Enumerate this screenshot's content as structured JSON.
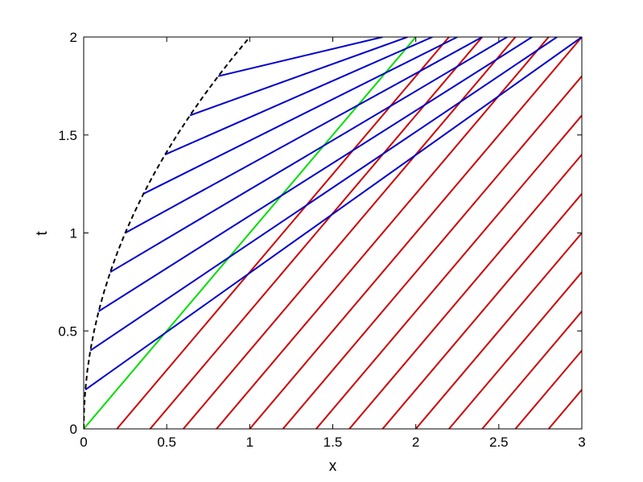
{
  "chart_data": {
    "type": "line",
    "title": "",
    "xlabel": "x",
    "ylabel": "t",
    "xlim": [
      0,
      3
    ],
    "ylim": [
      0,
      2
    ],
    "xticks": [
      0,
      0.5,
      1,
      1.5,
      2,
      2.5,
      3
    ],
    "yticks": [
      0,
      0.5,
      1,
      1.5,
      2
    ],
    "xtick_labels": [
      "0",
      "0.5",
      "1",
      "1.5",
      "2",
      "2.5",
      "3"
    ],
    "ytick_labels": [
      "0",
      "0.5",
      "1",
      "1.5",
      "2"
    ],
    "grid": false,
    "colors": {
      "red": "#cc0000",
      "blue": "#0000cc",
      "green": "#00dd00",
      "black": "#000000"
    },
    "series": [
      {
        "color": "red",
        "style": "solid",
        "lines": [
          [
            [
              0.2,
              0
            ],
            [
              2.2,
              2
            ]
          ],
          [
            [
              0.4,
              0
            ],
            [
              2.4,
              2
            ]
          ],
          [
            [
              0.6,
              0
            ],
            [
              2.6,
              2
            ]
          ],
          [
            [
              0.8,
              0
            ],
            [
              2.8,
              2
            ]
          ],
          [
            [
              1.0,
              0
            ],
            [
              3.0,
              2
            ]
          ],
          [
            [
              1.2,
              0
            ],
            [
              3.0,
              1.8
            ]
          ],
          [
            [
              1.4,
              0
            ],
            [
              3.0,
              1.6
            ]
          ],
          [
            [
              1.6,
              0
            ],
            [
              3.0,
              1.4
            ]
          ],
          [
            [
              1.8,
              0
            ],
            [
              3.0,
              1.2
            ]
          ],
          [
            [
              2.0,
              0
            ],
            [
              3.0,
              1.0
            ]
          ],
          [
            [
              2.2,
              0
            ],
            [
              3.0,
              0.8
            ]
          ],
          [
            [
              2.4,
              0
            ],
            [
              3.0,
              0.6
            ]
          ],
          [
            [
              2.6,
              0
            ],
            [
              3.0,
              0.4
            ]
          ],
          [
            [
              2.8,
              0
            ],
            [
              3.0,
              0.2
            ]
          ]
        ]
      },
      {
        "color": "green",
        "style": "solid",
        "lines": [
          [
            [
              0,
              0
            ],
            [
              2.0,
              2.0
            ]
          ]
        ]
      },
      {
        "color": "blue",
        "style": "solid",
        "lines": [
          [
            [
              0.01,
              0.2
            ],
            [
              3.0,
              2.0
            ]
          ],
          [
            [
              0.04,
              0.4
            ],
            [
              2.85,
              2.0
            ]
          ],
          [
            [
              0.09,
              0.6
            ],
            [
              2.7,
              2.0
            ]
          ],
          [
            [
              0.16,
              0.8
            ],
            [
              2.55,
              2.0
            ]
          ],
          [
            [
              0.25,
              1.0
            ],
            [
              2.4,
              2.0
            ]
          ],
          [
            [
              0.36,
              1.2
            ],
            [
              2.25,
              2.0
            ]
          ],
          [
            [
              0.49,
              1.4
            ],
            [
              2.1,
              2.0
            ]
          ],
          [
            [
              0.64,
              1.6
            ],
            [
              1.95,
              2.0
            ]
          ],
          [
            [
              0.81,
              1.8
            ],
            [
              1.8,
              2.0
            ]
          ]
        ]
      },
      {
        "color": "black",
        "style": "dashed",
        "curve": "t = 2*sqrt(x)",
        "x": [
          0,
          0.0025,
          0.01,
          0.0225,
          0.04,
          0.0625,
          0.09,
          0.1225,
          0.16,
          0.2025,
          0.25,
          0.3025,
          0.36,
          0.4225,
          0.49,
          0.5625,
          0.64,
          0.7225,
          0.81,
          0.9025,
          1.0
        ],
        "y": [
          0,
          0.1,
          0.2,
          0.3,
          0.4,
          0.5,
          0.6,
          0.7,
          0.8,
          0.9,
          1.0,
          1.1,
          1.2,
          1.3,
          1.4,
          1.5,
          1.6,
          1.7,
          1.8,
          1.9,
          2.0
        ]
      }
    ]
  }
}
